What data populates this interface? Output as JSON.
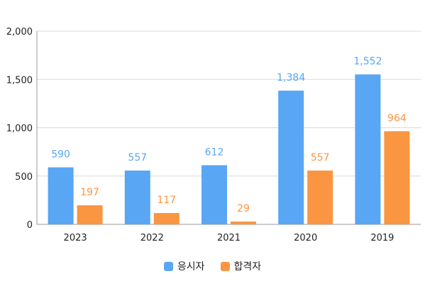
{
  "chart_data": {
    "type": "bar",
    "categories": [
      "2023",
      "2022",
      "2021",
      "2020",
      "2019"
    ],
    "series": [
      {
        "name": "응시자",
        "values": [
          590,
          557,
          612,
          1384,
          1552
        ],
        "color": "#58a6f4",
        "labels": [
          "590",
          "557",
          "612",
          "1,384",
          "1,552"
        ]
      },
      {
        "name": "합격자",
        "values": [
          197,
          117,
          29,
          557,
          964
        ],
        "color": "#fa9541",
        "labels": [
          "197",
          "117",
          "29",
          "557",
          "964"
        ]
      }
    ],
    "ylim": [
      0,
      2000
    ],
    "yticks": [
      0,
      500,
      1000,
      1500,
      2000
    ],
    "ytick_labels": [
      "0",
      "500",
      "1,000",
      "1,500",
      "2,000"
    ],
    "grid": true,
    "legend": "bottom"
  }
}
